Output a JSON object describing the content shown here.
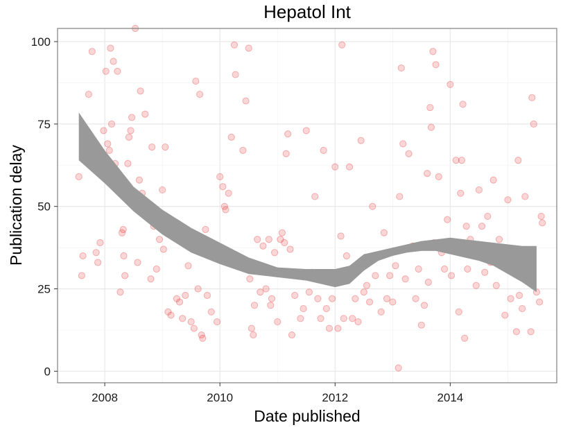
{
  "chart_data": {
    "type": "scatter",
    "title": "Hepatol Int",
    "xlabel": "Date published",
    "ylabel": "Publication delay",
    "x_axis": {
      "type": "year",
      "range": [
        2007.18,
        2015.85
      ],
      "ticks": [
        2008,
        2010,
        2012,
        2014
      ]
    },
    "y_axis": {
      "range": [
        -3.5,
        104
      ],
      "ticks": [
        0,
        25,
        50,
        75,
        100
      ]
    },
    "grid": true,
    "point_color": "#e41a1c",
    "band_color": "#999999",
    "points": [
      [
        2007.55,
        59
      ],
      [
        2007.6,
        29
      ],
      [
        2007.62,
        35
      ],
      [
        2007.65,
        72
      ],
      [
        2007.72,
        84
      ],
      [
        2007.78,
        97
      ],
      [
        2007.85,
        36
      ],
      [
        2007.88,
        33
      ],
      [
        2007.92,
        39
      ],
      [
        2007.95,
        63
      ],
      [
        2007.98,
        73
      ],
      [
        2008.02,
        91
      ],
      [
        2008.05,
        69
      ],
      [
        2008.08,
        67
      ],
      [
        2008.1,
        98
      ],
      [
        2008.12,
        75
      ],
      [
        2008.15,
        94
      ],
      [
        2008.18,
        63
      ],
      [
        2008.22,
        91
      ],
      [
        2008.27,
        24
      ],
      [
        2008.3,
        42
      ],
      [
        2008.32,
        43
      ],
      [
        2008.33,
        35
      ],
      [
        2008.35,
        29
      ],
      [
        2008.4,
        63
      ],
      [
        2008.42,
        71
      ],
      [
        2008.45,
        73
      ],
      [
        2008.47,
        77
      ],
      [
        2008.5,
        51
      ],
      [
        2008.53,
        104
      ],
      [
        2008.57,
        33
      ],
      [
        2008.6,
        58
      ],
      [
        2008.62,
        85
      ],
      [
        2008.65,
        54
      ],
      [
        2008.7,
        78
      ],
      [
        2008.75,
        49
      ],
      [
        2008.8,
        28
      ],
      [
        2008.82,
        68
      ],
      [
        2008.85,
        44
      ],
      [
        2008.9,
        31
      ],
      [
        2008.93,
        46
      ],
      [
        2008.95,
        40
      ],
      [
        2009.0,
        55
      ],
      [
        2009.02,
        37
      ],
      [
        2009.05,
        68
      ],
      [
        2009.1,
        18
      ],
      [
        2009.15,
        17
      ],
      [
        2009.25,
        22
      ],
      [
        2009.3,
        21
      ],
      [
        2009.35,
        16
      ],
      [
        2009.4,
        23
      ],
      [
        2009.45,
        32
      ],
      [
        2009.5,
        15
      ],
      [
        2009.55,
        13
      ],
      [
        2009.58,
        88
      ],
      [
        2009.62,
        25
      ],
      [
        2009.65,
        84
      ],
      [
        2009.68,
        11
      ],
      [
        2009.7,
        10
      ],
      [
        2009.75,
        43
      ],
      [
        2009.78,
        23
      ],
      [
        2009.85,
        18
      ],
      [
        2009.95,
        15
      ],
      [
        2010.0,
        59
      ],
      [
        2010.05,
        56
      ],
      [
        2010.08,
        50
      ],
      [
        2010.1,
        49
      ],
      [
        2010.15,
        54
      ],
      [
        2010.2,
        71
      ],
      [
        2010.25,
        99
      ],
      [
        2010.27,
        90
      ],
      [
        2010.3,
        33
      ],
      [
        2010.4,
        67
      ],
      [
        2010.45,
        82
      ],
      [
        2010.5,
        98
      ],
      [
        2010.52,
        28
      ],
      [
        2010.55,
        13
      ],
      [
        2010.58,
        11
      ],
      [
        2010.6,
        20
      ],
      [
        2010.65,
        40
      ],
      [
        2010.7,
        24
      ],
      [
        2010.75,
        38
      ],
      [
        2010.8,
        25
      ],
      [
        2010.85,
        40
      ],
      [
        2010.88,
        20
      ],
      [
        2010.9,
        22
      ],
      [
        2010.95,
        36
      ],
      [
        2011.0,
        15
      ],
      [
        2011.05,
        40
      ],
      [
        2011.08,
        42
      ],
      [
        2011.12,
        39
      ],
      [
        2011.15,
        66
      ],
      [
        2011.18,
        72
      ],
      [
        2011.22,
        37
      ],
      [
        2011.25,
        11
      ],
      [
        2011.3,
        23
      ],
      [
        2011.35,
        30
      ],
      [
        2011.4,
        16
      ],
      [
        2011.45,
        19
      ],
      [
        2011.5,
        73
      ],
      [
        2011.55,
        24
      ],
      [
        2011.6,
        30
      ],
      [
        2011.65,
        53
      ],
      [
        2011.7,
        22
      ],
      [
        2011.75,
        16
      ],
      [
        2011.8,
        67
      ],
      [
        2011.85,
        19
      ],
      [
        2011.9,
        13
      ],
      [
        2011.95,
        22
      ],
      [
        2012.0,
        62
      ],
      [
        2012.05,
        13
      ],
      [
        2012.1,
        41
      ],
      [
        2012.12,
        99
      ],
      [
        2012.15,
        16
      ],
      [
        2012.18,
        30
      ],
      [
        2012.2,
        35
      ],
      [
        2012.25,
        62
      ],
      [
        2012.3,
        16
      ],
      [
        2012.35,
        22
      ],
      [
        2012.4,
        15
      ],
      [
        2012.45,
        70
      ],
      [
        2012.5,
        24
      ],
      [
        2012.55,
        26
      ],
      [
        2012.6,
        21
      ],
      [
        2012.65,
        50
      ],
      [
        2012.7,
        29
      ],
      [
        2012.75,
        35
      ],
      [
        2012.8,
        18
      ],
      [
        2012.85,
        42
      ],
      [
        2012.9,
        22
      ],
      [
        2012.95,
        29
      ],
      [
        2013.0,
        21
      ],
      [
        2013.05,
        32
      ],
      [
        2013.1,
        1
      ],
      [
        2013.12,
        53
      ],
      [
        2013.15,
        92
      ],
      [
        2013.18,
        69
      ],
      [
        2013.22,
        28
      ],
      [
        2013.28,
        66
      ],
      [
        2013.35,
        38
      ],
      [
        2013.4,
        22
      ],
      [
        2013.45,
        31
      ],
      [
        2013.5,
        14
      ],
      [
        2013.55,
        20
      ],
      [
        2013.6,
        60
      ],
      [
        2013.62,
        27
      ],
      [
        2013.65,
        80
      ],
      [
        2013.67,
        74
      ],
      [
        2013.7,
        97
      ],
      [
        2013.72,
        39
      ],
      [
        2013.75,
        93
      ],
      [
        2013.8,
        59
      ],
      [
        2013.85,
        36
      ],
      [
        2013.9,
        31
      ],
      [
        2013.95,
        46
      ],
      [
        2014.0,
        87
      ],
      [
        2014.02,
        29
      ],
      [
        2014.05,
        39
      ],
      [
        2014.1,
        64
      ],
      [
        2014.15,
        18
      ],
      [
        2014.18,
        54
      ],
      [
        2014.2,
        64
      ],
      [
        2014.22,
        81
      ],
      [
        2014.25,
        10
      ],
      [
        2014.28,
        44
      ],
      [
        2014.3,
        31
      ],
      [
        2014.35,
        40
      ],
      [
        2014.4,
        36
      ],
      [
        2014.45,
        26
      ],
      [
        2014.5,
        55
      ],
      [
        2014.55,
        44
      ],
      [
        2014.6,
        30
      ],
      [
        2014.65,
        47
      ],
      [
        2014.7,
        33
      ],
      [
        2014.75,
        58
      ],
      [
        2014.8,
        26
      ],
      [
        2014.85,
        40
      ],
      [
        2014.9,
        37
      ],
      [
        2014.95,
        17
      ],
      [
        2015.0,
        52
      ],
      [
        2015.05,
        22
      ],
      [
        2015.1,
        33
      ],
      [
        2015.15,
        12
      ],
      [
        2015.18,
        64
      ],
      [
        2015.2,
        23
      ],
      [
        2015.25,
        19
      ],
      [
        2015.3,
        53
      ],
      [
        2015.35,
        29
      ],
      [
        2015.4,
        12
      ],
      [
        2015.42,
        83
      ],
      [
        2015.45,
        75
      ],
      [
        2015.5,
        24
      ],
      [
        2015.55,
        21
      ],
      [
        2015.58,
        47
      ],
      [
        2015.6,
        45
      ]
    ],
    "smooth_band": {
      "x": [
        2007.55,
        2008.0,
        2008.5,
        2009.0,
        2009.5,
        2010.0,
        2010.5,
        2011.0,
        2011.5,
        2012.0,
        2012.25,
        2012.5,
        2012.75,
        2013.0,
        2013.25,
        2013.5,
        2013.75,
        2014.0,
        2014.25,
        2014.5,
        2014.75,
        2015.0,
        2015.25,
        2015.5
      ],
      "lower": [
        64,
        57,
        48.5,
        41.5,
        36,
        32.5,
        29.5,
        28.5,
        27.5,
        25.5,
        26.5,
        30.5,
        33.5,
        35,
        36,
        36.5,
        36.5,
        35.5,
        34.5,
        33.5,
        32,
        29.5,
        27,
        24
      ],
      "upper": [
        78.5,
        67,
        56,
        49,
        43.5,
        39,
        34.5,
        31.5,
        31,
        31,
        32,
        35.5,
        36.5,
        37.5,
        38.5,
        39.5,
        40,
        40.5,
        40,
        39.5,
        39,
        38.5,
        38,
        38
      ]
    }
  }
}
